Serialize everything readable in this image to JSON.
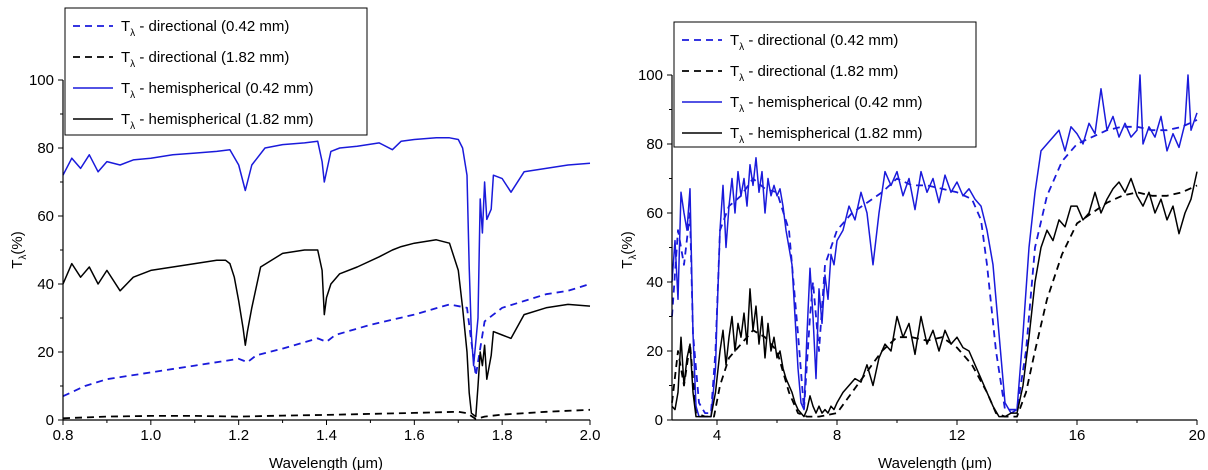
{
  "chart_data": [
    {
      "type": "line",
      "xlabel": "Wavelength (μm)",
      "ylabel": "Tλ(%)",
      "xlim": [
        0.8,
        2.0
      ],
      "ylim": [
        0,
        100
      ],
      "xticks": [
        "0.8",
        "1.0",
        "1.2",
        "1.4",
        "1.6",
        "1.8",
        "2.0"
      ],
      "yticks": [
        "0",
        "20",
        "40",
        "60",
        "80",
        "100"
      ],
      "legend_position": "top-left",
      "series": [
        {
          "name": "Tλ - directional (0.42 mm)",
          "color": "#1a1adb",
          "dash": "dashed",
          "x": [
            0.8,
            0.85,
            0.9,
            1.0,
            1.1,
            1.2,
            1.22,
            1.24,
            1.3,
            1.38,
            1.4,
            1.42,
            1.5,
            1.6,
            1.68,
            1.72,
            1.74,
            1.76,
            1.78,
            1.8,
            1.85,
            1.9,
            1.95,
            2.0
          ],
          "y": [
            7,
            10,
            12,
            14,
            16,
            18,
            17,
            19,
            21,
            24,
            23,
            25,
            28,
            31,
            34,
            33,
            13,
            29,
            31,
            33,
            35,
            37,
            38,
            40
          ]
        },
        {
          "name": "Tλ - directional (1.82 mm)",
          "color": "#000000",
          "dash": "dashed",
          "x": [
            0.8,
            0.9,
            1.0,
            1.1,
            1.2,
            1.3,
            1.4,
            1.5,
            1.6,
            1.7,
            1.72,
            1.74,
            1.76,
            1.8,
            1.9,
            2.0
          ],
          "y": [
            0.5,
            1,
            1.2,
            1.2,
            1,
            1.3,
            1.5,
            1.8,
            2.1,
            2.4,
            2,
            0.3,
            1,
            1.6,
            2.4,
            3
          ]
        },
        {
          "name": "Tλ - hemispherical (0.42 mm)",
          "color": "#1a1adb",
          "dash": "solid",
          "x": [
            0.8,
            0.82,
            0.84,
            0.86,
            0.88,
            0.9,
            0.93,
            0.96,
            1.0,
            1.05,
            1.1,
            1.15,
            1.18,
            1.2,
            1.215,
            1.23,
            1.26,
            1.3,
            1.35,
            1.38,
            1.39,
            1.395,
            1.41,
            1.43,
            1.47,
            1.52,
            1.55,
            1.57,
            1.6,
            1.65,
            1.68,
            1.7,
            1.71,
            1.72,
            1.725,
            1.73,
            1.735,
            1.745,
            1.75,
            1.755,
            1.76,
            1.765,
            1.775,
            1.78,
            1.8,
            1.82,
            1.85,
            1.9,
            1.95,
            2.0
          ],
          "y": [
            72,
            77,
            74,
            78,
            73,
            76,
            75,
            76.5,
            77,
            78,
            78.5,
            79,
            79.5,
            75,
            67.5,
            75,
            80,
            81,
            81.5,
            82,
            76,
            70,
            79,
            80,
            80.5,
            81.5,
            79.5,
            82,
            82.5,
            83,
            83,
            82.5,
            80,
            72,
            45,
            25,
            16,
            30,
            65,
            55,
            70,
            59,
            62,
            72,
            71,
            67,
            73,
            74,
            75,
            75.5
          ]
        },
        {
          "name": "Tλ - hemispherical (1.82 mm)",
          "color": "#000000",
          "dash": "solid",
          "x": [
            0.8,
            0.82,
            0.84,
            0.86,
            0.88,
            0.9,
            0.93,
            0.96,
            1.0,
            1.05,
            1.1,
            1.15,
            1.17,
            1.18,
            1.19,
            1.2,
            1.21,
            1.215,
            1.22,
            1.23,
            1.25,
            1.3,
            1.35,
            1.38,
            1.39,
            1.395,
            1.4,
            1.41,
            1.43,
            1.47,
            1.52,
            1.55,
            1.57,
            1.6,
            1.65,
            1.68,
            1.7,
            1.71,
            1.72,
            1.725,
            1.73,
            1.74,
            1.745,
            1.75,
            1.755,
            1.76,
            1.765,
            1.775,
            1.78,
            1.8,
            1.82,
            1.85,
            1.9,
            1.95,
            2.0
          ],
          "y": [
            40,
            46,
            42,
            45,
            40,
            44,
            38,
            42,
            44,
            45,
            46,
            47,
            47,
            46,
            42,
            35,
            27,
            22,
            26,
            33,
            45,
            49,
            50,
            50,
            44,
            31,
            36,
            40,
            43,
            45,
            48,
            50,
            51,
            52,
            53,
            52,
            44,
            33,
            20,
            8,
            2,
            1,
            10,
            20,
            16,
            22,
            12,
            19,
            26,
            25,
            24,
            31,
            33,
            34,
            33.5
          ]
        }
      ]
    },
    {
      "type": "line",
      "xlabel": "Wavelength (μm)",
      "ylabel": "Tλ(%)",
      "xlim": [
        2.5,
        20
      ],
      "ylim": [
        0,
        100
      ],
      "xticks": [
        "4",
        "8",
        "12",
        "16",
        "20"
      ],
      "yticks": [
        "0",
        "20",
        "40",
        "60",
        "80",
        "100"
      ],
      "legend_position": "top-left",
      "series": [
        {
          "name": "Tλ - directional (0.42 mm)",
          "color": "#1a1adb",
          "dash": "dashed",
          "x": [
            2.5,
            2.7,
            2.9,
            3.1,
            3.2,
            3.4,
            3.6,
            3.8,
            3.95,
            4.1,
            4.4,
            4.8,
            5.2,
            5.6,
            6.0,
            6.4,
            6.7,
            6.9,
            7.1,
            7.2,
            7.4,
            7.6,
            8.0,
            8.5,
            9.0,
            9.5,
            10.0,
            10.5,
            11.0,
            11.5,
            12.0,
            12.5,
            12.8,
            13.0,
            13.3,
            13.6,
            14.0,
            14.3,
            14.6,
            15.0,
            15.5,
            16.0,
            16.5,
            17.0,
            17.5,
            18.0,
            18.5,
            19.0,
            19.5,
            20.0
          ],
          "y": [
            30,
            55,
            45,
            60,
            25,
            5,
            2,
            2,
            20,
            55,
            62,
            65,
            70,
            67,
            66,
            55,
            25,
            3,
            30,
            40,
            20,
            45,
            55,
            60,
            63,
            66,
            70,
            68,
            68,
            67,
            66,
            64,
            58,
            45,
            20,
            3,
            3,
            20,
            50,
            65,
            75,
            80,
            82,
            84,
            85,
            85,
            84,
            84,
            85,
            87
          ]
        },
        {
          "name": "Tλ - directional (1.82 mm)",
          "color": "#000000",
          "dash": "dashed",
          "x": [
            2.5,
            2.7,
            2.9,
            3.1,
            3.3,
            3.6,
            3.9,
            4.1,
            4.4,
            4.8,
            5.2,
            5.6,
            6.0,
            6.4,
            6.7,
            7.0,
            7.4,
            8.0,
            8.5,
            9.0,
            9.5,
            10.0,
            10.5,
            11.0,
            11.5,
            12.0,
            12.5,
            13.0,
            13.3,
            13.6,
            14.0,
            14.3,
            14.6,
            15.0,
            15.5,
            16.0,
            16.5,
            17.0,
            17.5,
            18.0,
            18.5,
            19.0,
            19.5,
            20.0
          ],
          "y": [
            5,
            20,
            10,
            22,
            2,
            1,
            1,
            10,
            18,
            22,
            26,
            24,
            20,
            8,
            2,
            1,
            1,
            2,
            8,
            14,
            20,
            24,
            24,
            23,
            24,
            21,
            16,
            8,
            2,
            1,
            1,
            8,
            20,
            35,
            48,
            57,
            60,
            63,
            65,
            66,
            65,
            65,
            66,
            68
          ]
        },
        {
          "name": "Tλ - hemispherical (0.42 mm)",
          "color": "#1a1adb",
          "dash": "solid",
          "x": [
            2.5,
            2.6,
            2.7,
            2.8,
            2.9,
            3.0,
            3.1,
            3.2,
            3.3,
            3.4,
            3.6,
            3.8,
            3.95,
            4.0,
            4.1,
            4.2,
            4.3,
            4.4,
            4.5,
            4.6,
            4.7,
            4.8,
            4.9,
            5.0,
            5.1,
            5.2,
            5.3,
            5.4,
            5.5,
            5.6,
            5.7,
            5.8,
            5.9,
            6.0,
            6.1,
            6.2,
            6.3,
            6.4,
            6.5,
            6.6,
            6.7,
            6.8,
            6.9,
            7.0,
            7.1,
            7.2,
            7.3,
            7.4,
            7.5,
            7.6,
            7.7,
            7.8,
            7.9,
            8.0,
            8.2,
            8.4,
            8.6,
            8.8,
            9.0,
            9.2,
            9.4,
            9.6,
            9.8,
            10.0,
            10.2,
            10.4,
            10.6,
            10.8,
            11.0,
            11.2,
            11.4,
            11.6,
            11.8,
            12.0,
            12.2,
            12.4,
            12.6,
            12.8,
            13.0,
            13.2,
            13.4,
            13.6,
            13.8,
            14.0,
            14.2,
            14.4,
            14.6,
            14.8,
            15.0,
            15.2,
            15.4,
            15.6,
            15.8,
            16.0,
            16.2,
            16.4,
            16.6,
            16.8,
            17.0,
            17.2,
            17.4,
            17.6,
            17.8,
            18.0,
            18.1,
            18.2,
            18.4,
            18.6,
            18.8,
            19.0,
            19.2,
            19.4,
            19.6,
            19.7,
            19.8,
            20.0
          ],
          "y": [
            40,
            52,
            35,
            66,
            60,
            55,
            67,
            25,
            4,
            1,
            1,
            1,
            15,
            30,
            55,
            68,
            50,
            62,
            70,
            60,
            72,
            65,
            70,
            62,
            74,
            68,
            76,
            66,
            72,
            60,
            70,
            65,
            68,
            65,
            67,
            62,
            55,
            50,
            45,
            30,
            15,
            5,
            3,
            25,
            44,
            30,
            12,
            38,
            28,
            42,
            35,
            48,
            45,
            52,
            55,
            62,
            58,
            66,
            60,
            45,
            60,
            72,
            68,
            72,
            65,
            70,
            61,
            72,
            66,
            70,
            63,
            71,
            66,
            69,
            65,
            67,
            64,
            62,
            55,
            45,
            25,
            5,
            2,
            3,
            25,
            50,
            66,
            78,
            80,
            82,
            84,
            78,
            85,
            83,
            80,
            86,
            83,
            96,
            84,
            88,
            82,
            86,
            82,
            84,
            100,
            80,
            85,
            82,
            88,
            78,
            83,
            79,
            86,
            100,
            84,
            89
          ]
        },
        {
          "name": "Tλ - hemispherical (1.82 mm)",
          "color": "#000000",
          "dash": "solid",
          "x": [
            2.5,
            2.6,
            2.7,
            2.8,
            2.9,
            3.0,
            3.1,
            3.2,
            3.3,
            3.4,
            3.6,
            3.8,
            3.95,
            4.0,
            4.1,
            4.2,
            4.3,
            4.4,
            4.5,
            4.6,
            4.7,
            4.8,
            4.9,
            5.0,
            5.1,
            5.2,
            5.3,
            5.4,
            5.5,
            5.6,
            5.7,
            5.8,
            5.9,
            6.0,
            6.1,
            6.2,
            6.3,
            6.4,
            6.5,
            6.6,
            6.7,
            6.8,
            6.9,
            7.0,
            7.1,
            7.2,
            7.3,
            7.4,
            7.5,
            7.6,
            7.7,
            7.8,
            7.9,
            8.0,
            8.2,
            8.4,
            8.6,
            8.8,
            9.0,
            9.2,
            9.4,
            9.6,
            9.8,
            10.0,
            10.2,
            10.4,
            10.6,
            10.8,
            11.0,
            11.2,
            11.4,
            11.6,
            11.8,
            12.0,
            12.2,
            12.4,
            12.6,
            12.8,
            13.0,
            13.2,
            13.4,
            13.6,
            13.8,
            14.0,
            14.2,
            14.4,
            14.6,
            14.8,
            15.0,
            15.2,
            15.4,
            15.6,
            15.8,
            16.0,
            16.2,
            16.4,
            16.6,
            16.8,
            17.0,
            17.2,
            17.4,
            17.6,
            17.8,
            18.0,
            18.2,
            18.4,
            18.6,
            18.8,
            19.0,
            19.2,
            19.4,
            19.6,
            19.8,
            20.0
          ],
          "y": [
            4,
            3,
            8,
            24,
            10,
            18,
            22,
            8,
            1,
            1,
            1,
            1,
            8,
            12,
            20,
            26,
            16,
            24,
            30,
            20,
            28,
            24,
            31,
            22,
            38,
            26,
            33,
            22,
            30,
            18,
            28,
            20,
            24,
            18,
            20,
            15,
            12,
            10,
            8,
            5,
            3,
            2,
            1,
            3,
            7,
            4,
            2,
            4,
            2,
            3,
            2,
            4,
            3,
            5,
            8,
            10,
            12,
            11,
            16,
            10,
            18,
            22,
            20,
            30,
            24,
            28,
            19,
            30,
            22,
            26,
            20,
            26,
            22,
            24,
            21,
            20,
            16,
            12,
            8,
            4,
            1,
            1,
            2,
            2,
            10,
            24,
            40,
            50,
            55,
            52,
            58,
            56,
            62,
            62,
            58,
            60,
            66,
            60,
            64,
            67,
            69,
            66,
            70,
            65,
            62,
            66,
            60,
            64,
            58,
            62,
            54,
            60,
            64,
            72
          ]
        }
      ]
    }
  ]
}
